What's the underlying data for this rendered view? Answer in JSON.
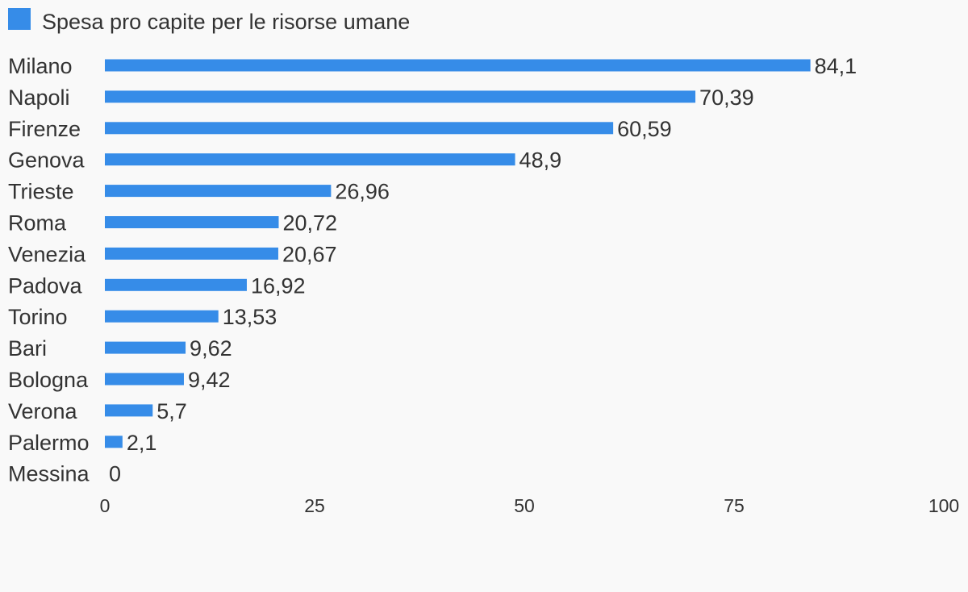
{
  "chart_data": {
    "type": "bar",
    "orientation": "horizontal",
    "categories": [
      "Milano",
      "Napoli",
      "Firenze",
      "Genova",
      "Trieste",
      "Roma",
      "Venezia",
      "Padova",
      "Torino",
      "Bari",
      "Bologna",
      "Verona",
      "Palermo",
      "Messina"
    ],
    "series": [
      {
        "name": "Spesa pro capite per le risorse umane",
        "color": "#368ce8",
        "values": [
          84.1,
          70.39,
          60.59,
          48.9,
          26.96,
          20.72,
          20.67,
          16.92,
          13.53,
          9.62,
          9.42,
          5.7,
          2.1,
          0
        ]
      }
    ],
    "value_labels": [
      "84,1",
      "70,39",
      "60,59",
      "48,9",
      "26,96",
      "20,72",
      "20,67",
      "16,92",
      "13,53",
      "9,62",
      "9,42",
      "5,7",
      "2,1",
      "0"
    ],
    "xlim": [
      0,
      100
    ],
    "xticks": [
      0,
      25,
      50,
      75,
      100
    ],
    "xtick_labels": [
      "0",
      "25",
      "50",
      "75",
      "100"
    ],
    "legend_position": "top-left",
    "grid": false
  }
}
